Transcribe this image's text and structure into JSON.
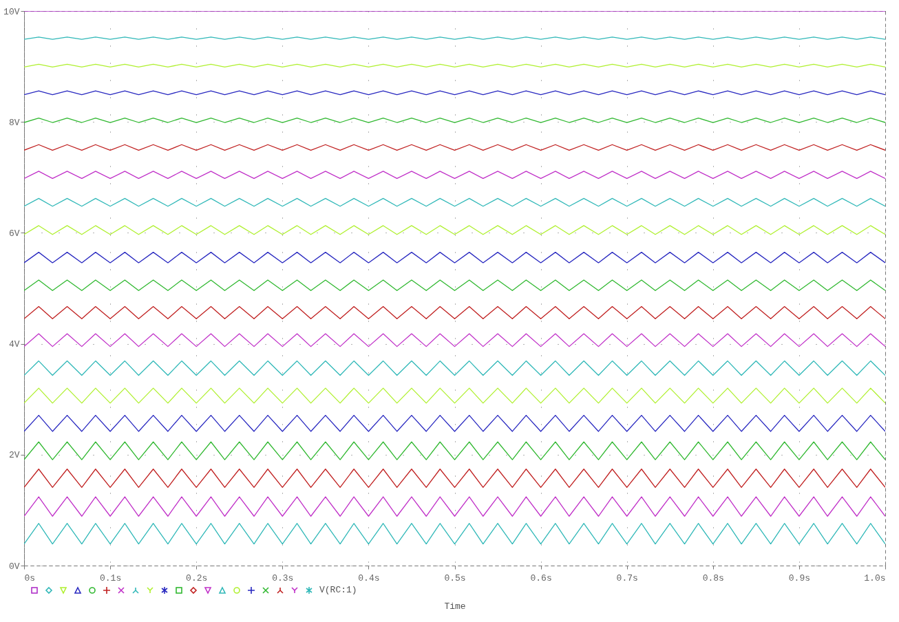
{
  "chart_data": {
    "type": "line",
    "xlabel": "Time",
    "legend_title": "V(RC:1)",
    "grid": true,
    "xlim": [
      0,
      1
    ],
    "ylim": [
      0,
      10
    ],
    "xticks": [
      {
        "value": 0,
        "label": "0s"
      },
      {
        "value": 0.1,
        "label": "0.1s"
      },
      {
        "value": 0.2,
        "label": "0.2s"
      },
      {
        "value": 0.3,
        "label": "0.3s"
      },
      {
        "value": 0.4,
        "label": "0.4s"
      },
      {
        "value": 0.5,
        "label": "0.5s"
      },
      {
        "value": 0.6,
        "label": "0.6s"
      },
      {
        "value": 0.7,
        "label": "0.7s"
      },
      {
        "value": 0.8,
        "label": "0.8s"
      },
      {
        "value": 0.9,
        "label": "0.9s"
      },
      {
        "value": 1,
        "label": "1.0s"
      }
    ],
    "yticks": [
      {
        "value": 0,
        "label": "0V"
      },
      {
        "value": 2,
        "label": "2V"
      },
      {
        "value": 4,
        "label": "4V"
      },
      {
        "value": 6,
        "label": "6V"
      },
      {
        "value": 8,
        "label": "8V"
      },
      {
        "value": 10,
        "label": "10V"
      }
    ],
    "x": [
      0,
      0.017,
      0.033,
      0.05,
      0.067,
      0.083,
      0.1,
      0.117,
      0.133,
      0.15,
      0.167,
      0.183,
      0.2,
      0.217,
      0.233,
      0.25,
      0.267,
      0.283,
      0.3,
      0.317,
      0.333,
      0.35,
      0.367,
      0.383,
      0.4,
      0.417,
      0.433,
      0.45,
      0.467,
      0.483,
      0.5,
      0.517,
      0.533,
      0.55,
      0.567,
      0.583,
      0.6,
      0.617,
      0.633,
      0.65,
      0.667,
      0.683,
      0.7,
      0.717,
      0.733,
      0.75,
      0.767,
      0.783,
      0.8,
      0.817,
      0.833,
      0.85,
      0.867,
      0.883,
      0.9,
      0.917,
      0.933,
      0.95,
      0.967,
      0.983,
      1
    ],
    "series": [
      {
        "color": "#b030c8",
        "x": [
          0,
          1
        ],
        "values": [
          10,
          10
        ]
      },
      {
        "color": "#30b8b8",
        "values": [
          9.49,
          9.53,
          9.49,
          9.53,
          9.49,
          9.53,
          9.49,
          9.53,
          9.49,
          9.53,
          9.49,
          9.53,
          9.49,
          9.53,
          9.49,
          9.53,
          9.49,
          9.53,
          9.49,
          9.53,
          9.49,
          9.53,
          9.49,
          9.53,
          9.49,
          9.53,
          9.49,
          9.53,
          9.49,
          9.53,
          9.49,
          9.53,
          9.49,
          9.53,
          9.49,
          9.53,
          9.49,
          9.53,
          9.49,
          9.53,
          9.49,
          9.53,
          9.49,
          9.53,
          9.49,
          9.53,
          9.49,
          9.53,
          9.49,
          9.53,
          9.49,
          9.53,
          9.49,
          9.53,
          9.49,
          9.53,
          9.49,
          9.53,
          9.49,
          9.53,
          9.49
        ]
      },
      {
        "color": "#b0f030",
        "values": [
          8.99,
          9.04,
          8.99,
          9.04,
          8.99,
          9.04,
          8.99,
          9.04,
          8.99,
          9.04,
          8.99,
          9.04,
          8.99,
          9.04,
          8.99,
          9.04,
          8.99,
          9.04,
          8.99,
          9.04,
          8.99,
          9.04,
          8.99,
          9.04,
          8.99,
          9.04,
          8.99,
          9.04,
          8.99,
          9.04,
          8.99,
          9.04,
          8.99,
          9.04,
          8.99,
          9.04,
          8.99,
          9.04,
          8.99,
          9.04,
          8.99,
          9.04,
          8.99,
          9.04,
          8.99,
          9.04,
          8.99,
          9.04,
          8.99,
          9.04,
          8.99,
          9.04,
          8.99,
          9.04,
          8.99,
          9.04,
          8.99,
          9.04,
          8.99,
          9.04,
          8.99
        ]
      },
      {
        "color": "#2828c0",
        "values": [
          8.49,
          8.56,
          8.49,
          8.56,
          8.49,
          8.56,
          8.49,
          8.56,
          8.49,
          8.56,
          8.49,
          8.56,
          8.49,
          8.56,
          8.49,
          8.56,
          8.49,
          8.56,
          8.49,
          8.56,
          8.49,
          8.56,
          8.49,
          8.56,
          8.49,
          8.56,
          8.49,
          8.56,
          8.49,
          8.56,
          8.49,
          8.56,
          8.49,
          8.56,
          8.49,
          8.56,
          8.49,
          8.56,
          8.49,
          8.56,
          8.49,
          8.56,
          8.49,
          8.56,
          8.49,
          8.56,
          8.49,
          8.56,
          8.49,
          8.56,
          8.49,
          8.56,
          8.49,
          8.56,
          8.49,
          8.56,
          8.49,
          8.56,
          8.49,
          8.56,
          8.49
        ]
      },
      {
        "color": "#30b830",
        "values": [
          7.99,
          8.07,
          7.99,
          8.07,
          7.99,
          8.07,
          7.99,
          8.07,
          7.99,
          8.07,
          7.99,
          8.07,
          7.99,
          8.07,
          7.99,
          8.07,
          7.99,
          8.07,
          7.99,
          8.07,
          7.99,
          8.07,
          7.99,
          8.07,
          7.99,
          8.07,
          7.99,
          8.07,
          7.99,
          8.07,
          7.99,
          8.07,
          7.99,
          8.07,
          7.99,
          8.07,
          7.99,
          8.07,
          7.99,
          8.07,
          7.99,
          8.07,
          7.99,
          8.07,
          7.99,
          8.07,
          7.99,
          8.07,
          7.99,
          8.07,
          7.99,
          8.07,
          7.99,
          8.07,
          7.99,
          8.07,
          7.99,
          8.07,
          7.99,
          8.07,
          7.99
        ]
      },
      {
        "color": "#c02020",
        "values": [
          7.49,
          7.59,
          7.49,
          7.59,
          7.49,
          7.59,
          7.49,
          7.59,
          7.49,
          7.59,
          7.49,
          7.59,
          7.49,
          7.59,
          7.49,
          7.59,
          7.49,
          7.59,
          7.49,
          7.59,
          7.49,
          7.59,
          7.49,
          7.59,
          7.49,
          7.59,
          7.49,
          7.59,
          7.49,
          7.59,
          7.49,
          7.59,
          7.49,
          7.59,
          7.49,
          7.59,
          7.49,
          7.59,
          7.49,
          7.59,
          7.49,
          7.59,
          7.49,
          7.59,
          7.49,
          7.59,
          7.49,
          7.59,
          7.49,
          7.59,
          7.49,
          7.59,
          7.49,
          7.59,
          7.49,
          7.59,
          7.49,
          7.59,
          7.49,
          7.59,
          7.49
        ]
      },
      {
        "color": "#c030c8",
        "values": [
          6.98,
          7.11,
          6.98,
          7.11,
          6.98,
          7.11,
          6.98,
          7.11,
          6.98,
          7.11,
          6.98,
          7.11,
          6.98,
          7.11,
          6.98,
          7.11,
          6.98,
          7.11,
          6.98,
          7.11,
          6.98,
          7.11,
          6.98,
          7.11,
          6.98,
          7.11,
          6.98,
          7.11,
          6.98,
          7.11,
          6.98,
          7.11,
          6.98,
          7.11,
          6.98,
          7.11,
          6.98,
          7.11,
          6.98,
          7.11,
          6.98,
          7.11,
          6.98,
          7.11,
          6.98,
          7.11,
          6.98,
          7.11,
          6.98,
          7.11,
          6.98,
          7.11,
          6.98,
          7.11,
          6.98,
          7.11,
          6.98,
          7.11,
          6.98,
          7.11,
          6.98
        ]
      },
      {
        "color": "#30b8b8",
        "values": [
          6.48,
          6.62,
          6.48,
          6.62,
          6.48,
          6.62,
          6.48,
          6.62,
          6.48,
          6.62,
          6.48,
          6.62,
          6.48,
          6.62,
          6.48,
          6.62,
          6.48,
          6.62,
          6.48,
          6.62,
          6.48,
          6.62,
          6.48,
          6.62,
          6.48,
          6.62,
          6.48,
          6.62,
          6.48,
          6.62,
          6.48,
          6.62,
          6.48,
          6.62,
          6.48,
          6.62,
          6.48,
          6.62,
          6.48,
          6.62,
          6.48,
          6.62,
          6.48,
          6.62,
          6.48,
          6.62,
          6.48,
          6.62,
          6.48,
          6.62,
          6.48,
          6.62,
          6.48,
          6.62,
          6.48,
          6.62,
          6.48,
          6.62,
          6.48,
          6.62,
          6.48
        ]
      },
      {
        "color": "#b0f030",
        "values": [
          5.97,
          6.13,
          5.97,
          6.13,
          5.97,
          6.13,
          5.97,
          6.13,
          5.97,
          6.13,
          5.97,
          6.13,
          5.97,
          6.13,
          5.97,
          6.13,
          5.97,
          6.13,
          5.97,
          6.13,
          5.97,
          6.13,
          5.97,
          6.13,
          5.97,
          6.13,
          5.97,
          6.13,
          5.97,
          6.13,
          5.97,
          6.13,
          5.97,
          6.13,
          5.97,
          6.13,
          5.97,
          6.13,
          5.97,
          6.13,
          5.97,
          6.13,
          5.97,
          6.13,
          5.97,
          6.13,
          5.97,
          6.13,
          5.97,
          6.13,
          5.97,
          6.13,
          5.97,
          6.13,
          5.97,
          6.13,
          5.97,
          6.13,
          5.97,
          6.13,
          5.97
        ]
      },
      {
        "color": "#2828c0",
        "values": [
          5.46,
          5.65,
          5.46,
          5.65,
          5.46,
          5.65,
          5.46,
          5.65,
          5.46,
          5.65,
          5.46,
          5.65,
          5.46,
          5.65,
          5.46,
          5.65,
          5.46,
          5.65,
          5.46,
          5.65,
          5.46,
          5.65,
          5.46,
          5.65,
          5.46,
          5.65,
          5.46,
          5.65,
          5.46,
          5.65,
          5.46,
          5.65,
          5.46,
          5.65,
          5.46,
          5.65,
          5.46,
          5.65,
          5.46,
          5.65,
          5.46,
          5.65,
          5.46,
          5.65,
          5.46,
          5.65,
          5.46,
          5.65,
          5.46,
          5.65,
          5.46,
          5.65,
          5.46,
          5.65,
          5.46,
          5.65,
          5.46,
          5.65,
          5.46,
          5.65,
          5.46
        ]
      },
      {
        "color": "#30b830",
        "values": [
          4.96,
          5.15,
          4.96,
          5.15,
          4.96,
          5.15,
          4.96,
          5.15,
          4.96,
          5.15,
          4.96,
          5.15,
          4.96,
          5.15,
          4.96,
          5.15,
          4.96,
          5.15,
          4.96,
          5.15,
          4.96,
          5.15,
          4.96,
          5.15,
          4.96,
          5.15,
          4.96,
          5.15,
          4.96,
          5.15,
          4.96,
          5.15,
          4.96,
          5.15,
          4.96,
          5.15,
          4.96,
          5.15,
          4.96,
          5.15,
          4.96,
          5.15,
          4.96,
          5.15,
          4.96,
          5.15,
          4.96,
          5.15,
          4.96,
          5.15,
          4.96,
          5.15,
          4.96,
          5.15,
          4.96,
          5.15,
          4.96,
          5.15,
          4.96,
          5.15,
          4.96
        ]
      },
      {
        "color": "#c02020",
        "values": [
          4.45,
          4.67,
          4.45,
          4.67,
          4.45,
          4.67,
          4.45,
          4.67,
          4.45,
          4.67,
          4.45,
          4.67,
          4.45,
          4.67,
          4.45,
          4.67,
          4.45,
          4.67,
          4.45,
          4.67,
          4.45,
          4.67,
          4.45,
          4.67,
          4.45,
          4.67,
          4.45,
          4.67,
          4.45,
          4.67,
          4.45,
          4.67,
          4.45,
          4.67,
          4.45,
          4.67,
          4.45,
          4.67,
          4.45,
          4.67,
          4.45,
          4.67,
          4.45,
          4.67,
          4.45,
          4.67,
          4.45,
          4.67,
          4.45,
          4.67,
          4.45,
          4.67,
          4.45,
          4.67,
          4.45,
          4.67,
          4.45,
          4.67,
          4.45,
          4.67,
          4.45
        ]
      },
      {
        "color": "#c030c8",
        "values": [
          3.95,
          4.18,
          3.95,
          4.18,
          3.95,
          4.18,
          3.95,
          4.18,
          3.95,
          4.18,
          3.95,
          4.18,
          3.95,
          4.18,
          3.95,
          4.18,
          3.95,
          4.18,
          3.95,
          4.18,
          3.95,
          4.18,
          3.95,
          4.18,
          3.95,
          4.18,
          3.95,
          4.18,
          3.95,
          4.18,
          3.95,
          4.18,
          3.95,
          4.18,
          3.95,
          4.18,
          3.95,
          4.18,
          3.95,
          4.18,
          3.95,
          4.18,
          3.95,
          4.18,
          3.95,
          4.18,
          3.95,
          4.18,
          3.95,
          4.18,
          3.95,
          4.18,
          3.95,
          4.18,
          3.95,
          4.18,
          3.95,
          4.18,
          3.95,
          4.18,
          3.95
        ]
      },
      {
        "color": "#30b8b8",
        "values": [
          3.43,
          3.69,
          3.43,
          3.69,
          3.43,
          3.69,
          3.43,
          3.69,
          3.43,
          3.69,
          3.43,
          3.69,
          3.43,
          3.69,
          3.43,
          3.69,
          3.43,
          3.69,
          3.43,
          3.69,
          3.43,
          3.69,
          3.43,
          3.69,
          3.43,
          3.69,
          3.43,
          3.69,
          3.43,
          3.69,
          3.43,
          3.69,
          3.43,
          3.69,
          3.43,
          3.69,
          3.43,
          3.69,
          3.43,
          3.69,
          3.43,
          3.69,
          3.43,
          3.69,
          3.43,
          3.69,
          3.43,
          3.69,
          3.43,
          3.69,
          3.43,
          3.69,
          3.43,
          3.69,
          3.43,
          3.69,
          3.43,
          3.69,
          3.43,
          3.69,
          3.43
        ]
      },
      {
        "color": "#b0f030",
        "values": [
          2.93,
          3.2,
          2.93,
          3.2,
          2.93,
          3.2,
          2.93,
          3.2,
          2.93,
          3.2,
          2.93,
          3.2,
          2.93,
          3.2,
          2.93,
          3.2,
          2.93,
          3.2,
          2.93,
          3.2,
          2.93,
          3.2,
          2.93,
          3.2,
          2.93,
          3.2,
          2.93,
          3.2,
          2.93,
          3.2,
          2.93,
          3.2,
          2.93,
          3.2,
          2.93,
          3.2,
          2.93,
          3.2,
          2.93,
          3.2,
          2.93,
          3.2,
          2.93,
          3.2,
          2.93,
          3.2,
          2.93,
          3.2,
          2.93,
          3.2,
          2.93,
          3.2,
          2.93,
          3.2,
          2.93,
          3.2,
          2.93,
          3.2,
          2.93,
          3.2,
          2.93
        ]
      },
      {
        "color": "#2828c0",
        "values": [
          2.42,
          2.71,
          2.42,
          2.71,
          2.42,
          2.71,
          2.42,
          2.71,
          2.42,
          2.71,
          2.42,
          2.71,
          2.42,
          2.71,
          2.42,
          2.71,
          2.42,
          2.71,
          2.42,
          2.71,
          2.42,
          2.71,
          2.42,
          2.71,
          2.42,
          2.71,
          2.42,
          2.71,
          2.42,
          2.71,
          2.42,
          2.71,
          2.42,
          2.71,
          2.42,
          2.71,
          2.42,
          2.71,
          2.42,
          2.71,
          2.42,
          2.71,
          2.42,
          2.71,
          2.42,
          2.71,
          2.42,
          2.71,
          2.42,
          2.71,
          2.42,
          2.71,
          2.42,
          2.71,
          2.42,
          2.71,
          2.42,
          2.71,
          2.42,
          2.71,
          2.42
        ]
      },
      {
        "color": "#30b830",
        "values": [
          1.91,
          2.23,
          1.91,
          2.23,
          1.91,
          2.23,
          1.91,
          2.23,
          1.91,
          2.23,
          1.91,
          2.23,
          1.91,
          2.23,
          1.91,
          2.23,
          1.91,
          2.23,
          1.91,
          2.23,
          1.91,
          2.23,
          1.91,
          2.23,
          1.91,
          2.23,
          1.91,
          2.23,
          1.91,
          2.23,
          1.91,
          2.23,
          1.91,
          2.23,
          1.91,
          2.23,
          1.91,
          2.23,
          1.91,
          2.23,
          1.91,
          2.23,
          1.91,
          2.23,
          1.91,
          2.23,
          1.91,
          2.23,
          1.91,
          2.23,
          1.91,
          2.23,
          1.91,
          2.23,
          1.91,
          2.23,
          1.91,
          2.23,
          1.91,
          2.23,
          1.91
        ]
      },
      {
        "color": "#c02020",
        "values": [
          1.41,
          1.74,
          1.41,
          1.74,
          1.41,
          1.74,
          1.41,
          1.74,
          1.41,
          1.74,
          1.41,
          1.74,
          1.41,
          1.74,
          1.41,
          1.74,
          1.41,
          1.74,
          1.41,
          1.74,
          1.41,
          1.74,
          1.41,
          1.74,
          1.41,
          1.74,
          1.41,
          1.74,
          1.41,
          1.74,
          1.41,
          1.74,
          1.41,
          1.74,
          1.41,
          1.74,
          1.41,
          1.74,
          1.41,
          1.74,
          1.41,
          1.74,
          1.41,
          1.74,
          1.41,
          1.74,
          1.41,
          1.74,
          1.41,
          1.74,
          1.41,
          1.74,
          1.41,
          1.74,
          1.41,
          1.74,
          1.41,
          1.74,
          1.41,
          1.74,
          1.41
        ]
      },
      {
        "color": "#c030c8",
        "values": [
          0.89,
          1.24,
          0.89,
          1.24,
          0.89,
          1.24,
          0.89,
          1.24,
          0.89,
          1.24,
          0.89,
          1.24,
          0.89,
          1.24,
          0.89,
          1.24,
          0.89,
          1.24,
          0.89,
          1.24,
          0.89,
          1.24,
          0.89,
          1.24,
          0.89,
          1.24,
          0.89,
          1.24,
          0.89,
          1.24,
          0.89,
          1.24,
          0.89,
          1.24,
          0.89,
          1.24,
          0.89,
          1.24,
          0.89,
          1.24,
          0.89,
          1.24,
          0.89,
          1.24,
          0.89,
          1.24,
          0.89,
          1.24,
          0.89,
          1.24,
          0.89,
          1.24,
          0.89,
          1.24,
          0.89,
          1.24,
          0.89,
          1.24,
          0.89,
          1.24,
          0.89
        ]
      },
      {
        "color": "#30b8b8",
        "values": [
          0.39,
          0.76,
          0.39,
          0.76,
          0.39,
          0.76,
          0.39,
          0.76,
          0.39,
          0.76,
          0.39,
          0.76,
          0.39,
          0.76,
          0.39,
          0.76,
          0.39,
          0.76,
          0.39,
          0.76,
          0.39,
          0.76,
          0.39,
          0.76,
          0.39,
          0.76,
          0.39,
          0.76,
          0.39,
          0.76,
          0.39,
          0.76,
          0.39,
          0.76,
          0.39,
          0.76,
          0.39,
          0.76,
          0.39,
          0.76,
          0.39,
          0.76,
          0.39,
          0.76,
          0.39,
          0.76,
          0.39,
          0.76,
          0.39,
          0.76,
          0.39,
          0.76,
          0.39,
          0.76,
          0.39,
          0.76,
          0.39,
          0.76,
          0.39,
          0.76,
          0.39
        ]
      }
    ]
  }
}
